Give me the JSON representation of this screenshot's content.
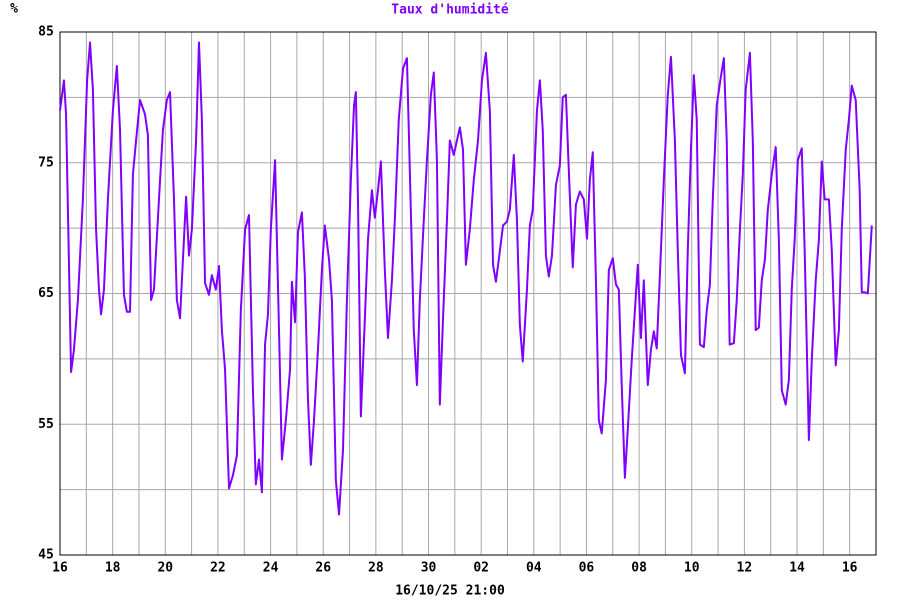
{
  "chart_data": {
    "type": "line",
    "title": "Taux d'humidité",
    "ylabel": "%",
    "xlabel": "16/10/25 21:00",
    "color": "#8000ff",
    "grid": true,
    "xlim": [
      0,
      31
    ],
    "ylim": [
      45,
      85
    ],
    "xticks": [
      {
        "value": 0,
        "label": "16"
      },
      {
        "value": 2,
        "label": "18"
      },
      {
        "value": 4,
        "label": "20"
      },
      {
        "value": 6,
        "label": "22"
      },
      {
        "value": 8,
        "label": "24"
      },
      {
        "value": 10,
        "label": "26"
      },
      {
        "value": 12,
        "label": "28"
      },
      {
        "value": 14,
        "label": "30"
      },
      {
        "value": 16,
        "label": "02"
      },
      {
        "value": 18,
        "label": "04"
      },
      {
        "value": 20,
        "label": "06"
      },
      {
        "value": 22,
        "label": "08"
      },
      {
        "value": 24,
        "label": "10"
      },
      {
        "value": 26,
        "label": "12"
      },
      {
        "value": 28,
        "label": "14"
      },
      {
        "value": 30,
        "label": "16"
      }
    ],
    "xminor": [
      1,
      3,
      5,
      7,
      9,
      11,
      13,
      15,
      17,
      19,
      21,
      23,
      25,
      27,
      29
    ],
    "yticks": [
      45,
      55,
      65,
      75,
      85
    ],
    "yminor": [
      50,
      60,
      70,
      80
    ],
    "x": [
      0,
      0.15,
      0.23,
      0.42,
      0.53,
      0.68,
      0.87,
      1.03,
      1.14,
      1.25,
      1.37,
      1.48,
      1.56,
      1.67,
      1.82,
      2.01,
      2.16,
      2.28,
      2.43,
      2.54,
      2.66,
      2.77,
      2.89,
      3.04,
      3.23,
      3.34,
      3.46,
      3.57,
      3.76,
      3.91,
      4.06,
      4.18,
      4.33,
      4.44,
      4.56,
      4.67,
      4.79,
      4.9,
      5.01,
      5.17,
      5.28,
      5.39,
      5.51,
      5.66,
      5.77,
      5.92,
      6.04,
      6.15,
      6.27,
      6.42,
      6.57,
      6.72,
      6.87,
      7.03,
      7.18,
      7.33,
      7.44,
      7.56,
      7.67,
      7.79,
      7.9,
      8.01,
      8.17,
      8.32,
      8.43,
      8.58,
      8.74,
      8.81,
      8.93,
      9.04,
      9.19,
      9.3,
      9.42,
      9.53,
      9.65,
      9.8,
      9.95,
      10.06,
      10.22,
      10.33,
      10.48,
      10.6,
      10.75,
      10.9,
      11.05,
      11.17,
      11.24,
      11.32,
      11.43,
      11.58,
      11.7,
      11.85,
      11.96,
      12.08,
      12.19,
      12.34,
      12.46,
      12.61,
      12.72,
      12.87,
      13.03,
      13.18,
      13.29,
      13.44,
      13.56,
      13.67,
      13.82,
      13.94,
      14.09,
      14.2,
      14.32,
      14.43,
      14.55,
      14.7,
      14.81,
      14.96,
      15.08,
      15.19,
      15.31,
      15.42,
      15.57,
      15.72,
      15.88,
      16.03,
      16.18,
      16.33,
      16.45,
      16.56,
      16.67,
      16.83,
      16.98,
      17.09,
      17.24,
      17.36,
      17.47,
      17.58,
      17.74,
      17.85,
      17.96,
      18.12,
      18.23,
      18.34,
      18.46,
      18.57,
      18.69,
      18.84,
      18.99,
      19.1,
      19.22,
      19.33,
      19.48,
      19.6,
      19.75,
      19.9,
      20.02,
      20.13,
      20.24,
      20.36,
      20.47,
      20.58,
      20.74,
      20.85,
      21.0,
      21.12,
      21.23,
      21.34,
      21.46,
      21.57,
      21.72,
      21.84,
      21.95,
      22.07,
      22.18,
      22.33,
      22.45,
      22.56,
      22.67,
      22.79,
      22.94,
      23.09,
      23.21,
      23.36,
      23.47,
      23.59,
      23.74,
      23.85,
      23.97,
      24.08,
      24.19,
      24.31,
      24.46,
      24.57,
      24.69,
      24.8,
      24.95,
      25.1,
      25.22,
      25.33,
      25.44,
      25.6,
      25.71,
      25.83,
      25.94,
      26.05,
      26.21,
      26.32,
      26.43,
      26.55,
      26.66,
      26.78,
      26.89,
      27.04,
      27.19,
      27.31,
      27.42,
      27.57,
      27.69,
      27.8,
      27.91,
      28.03,
      28.18,
      28.29,
      28.45,
      28.56,
      28.71,
      28.83,
      28.94,
      29.05,
      29.21,
      29.32,
      29.47,
      29.59,
      29.7,
      29.85,
      29.97,
      30.08,
      30.23,
      30.38,
      30.46,
      30.57,
      30.69,
      30.84
    ],
    "values": [
      79.0,
      81.3,
      78.7,
      59.0,
      60.7,
      64.5,
      72.2,
      81.3,
      84.2,
      80.6,
      69.9,
      65.3,
      63.4,
      65.3,
      72.2,
      79.0,
      82.4,
      77.5,
      64.9,
      63.6,
      63.6,
      74.1,
      76.7,
      79.8,
      78.7,
      77.1,
      64.5,
      65.3,
      72.2,
      77.5,
      79.8,
      80.4,
      72.2,
      64.5,
      63.1,
      67.6,
      72.4,
      67.9,
      69.9,
      76.7,
      84.2,
      78.3,
      65.8,
      64.9,
      66.4,
      65.3,
      67.1,
      62.2,
      59.2,
      50.1,
      51.1,
      52.6,
      63.7,
      69.9,
      71.0,
      57.6,
      50.4,
      52.3,
      49.8,
      61.1,
      63.4,
      69.9,
      75.2,
      62.2,
      52.3,
      55.3,
      59.2,
      65.9,
      62.8,
      69.7,
      71.2,
      66.4,
      56.9,
      51.9,
      55.3,
      60.7,
      66.8,
      70.2,
      67.6,
      64.5,
      50.7,
      48.1,
      53.0,
      64.5,
      73.7,
      79.4,
      80.4,
      72.2,
      55.6,
      63.0,
      69.1,
      72.9,
      70.8,
      72.9,
      75.1,
      66.8,
      61.6,
      66.0,
      70.6,
      78.3,
      82.2,
      83.0,
      74.4,
      62.2,
      58.0,
      64.5,
      70.6,
      75.2,
      80.2,
      81.9,
      75.2,
      56.5,
      63.0,
      70.6,
      76.7,
      75.6,
      76.7,
      77.7,
      76.0,
      67.2,
      69.9,
      73.7,
      76.7,
      81.3,
      83.4,
      79.0,
      67.2,
      65.9,
      67.6,
      70.2,
      70.5,
      71.4,
      75.6,
      70.6,
      62.6,
      59.8,
      65.3,
      70.2,
      71.4,
      79.0,
      81.3,
      77.5,
      67.9,
      66.3,
      67.9,
      73.3,
      74.8,
      80.0,
      80.2,
      74.4,
      67.0,
      71.8,
      72.8,
      72.2,
      69.2,
      73.7,
      75.8,
      66.0,
      55.3,
      54.3,
      58.4,
      66.8,
      67.7,
      65.7,
      65.3,
      58.0,
      50.9,
      54.6,
      59.9,
      63.7,
      67.2,
      61.6,
      66.0,
      58.0,
      60.7,
      62.1,
      60.8,
      66.4,
      73.7,
      80.2,
      83.1,
      76.7,
      68.3,
      60.3,
      58.9,
      68.3,
      76.0,
      81.7,
      78.3,
      61.1,
      60.9,
      63.7,
      65.7,
      72.2,
      79.4,
      81.5,
      83.0,
      76.7,
      61.1,
      61.2,
      64.5,
      69.9,
      74.1,
      80.6,
      83.4,
      76.7,
      62.2,
      62.4,
      66.0,
      67.6,
      71.4,
      74.1,
      76.2,
      69.1,
      57.6,
      56.5,
      58.4,
      65.3,
      69.1,
      75.2,
      76.1,
      68.3,
      53.8,
      59.9,
      66.0,
      69.1,
      75.1,
      72.2,
      72.2,
      68.3,
      59.5,
      62.2,
      69.9,
      76.0,
      78.3,
      80.9,
      79.8,
      72.9,
      65.1,
      65.1,
      65.0,
      70.2
    ]
  }
}
